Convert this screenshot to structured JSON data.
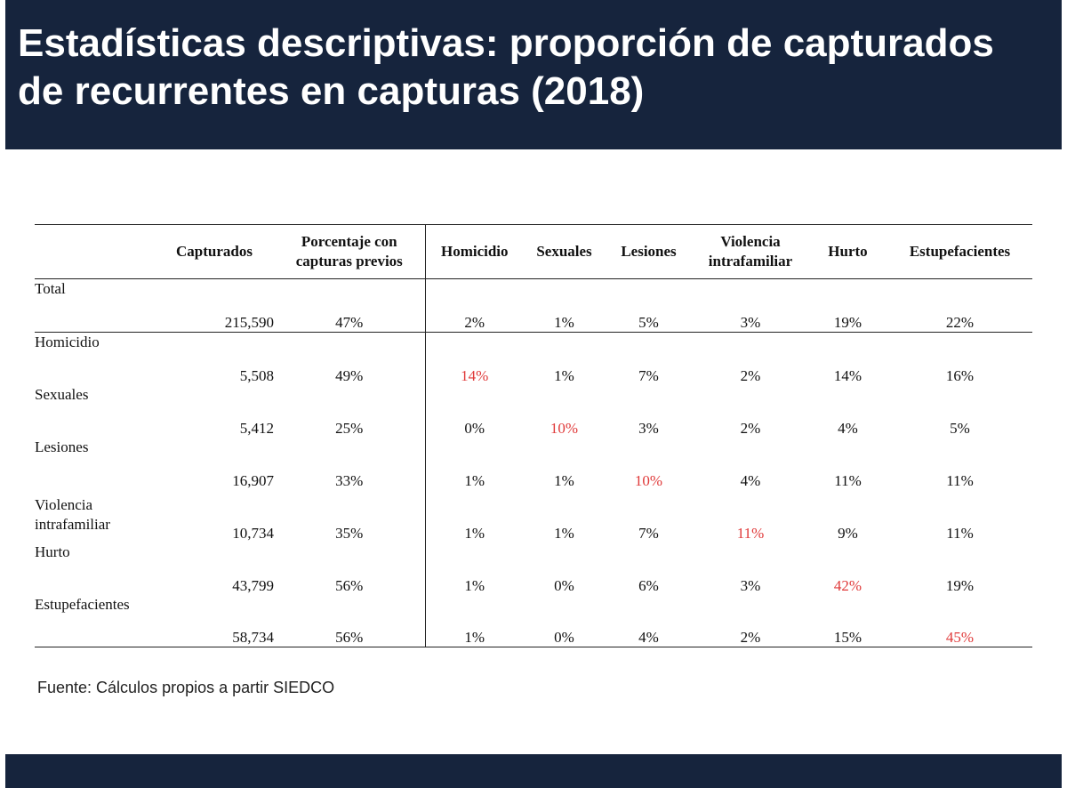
{
  "title_line1": "Estadísticas descriptivas: proporción de capturados",
  "title_line2": "de recurrentes en capturas (2018)",
  "colors": {
    "header_bg": "#16243d",
    "highlight": "#e03a3a"
  },
  "table": {
    "headers": {
      "label": "",
      "capturados": "Capturados",
      "porcentaje_1": "Porcentaje con",
      "porcentaje_2": "capturas previos",
      "homicidio": "Homicidio",
      "sexuales": "Sexuales",
      "lesiones": "Lesiones",
      "violencia_1": "Violencia",
      "violencia_2": "intrafamiliar",
      "hurto": "Hurto",
      "estupefacientes": "Estupefacientes"
    },
    "rows": [
      {
        "label": "Total",
        "capturados": "215,590",
        "porcentaje": "47%",
        "homicidio": "2%",
        "sexuales": "1%",
        "lesiones": "5%",
        "violencia": "3%",
        "hurto": "19%",
        "estupefacientes": "22%"
      },
      {
        "label": "Homicidio",
        "capturados": "5,508",
        "porcentaje": "49%",
        "homicidio": "14%",
        "sexuales": "1%",
        "lesiones": "7%",
        "violencia": "2%",
        "hurto": "14%",
        "estupefacientes": "16%"
      },
      {
        "label": "Sexuales",
        "capturados": "5,412",
        "porcentaje": "25%",
        "homicidio": "0%",
        "sexuales": "10%",
        "lesiones": "3%",
        "violencia": "2%",
        "hurto": "4%",
        "estupefacientes": "5%"
      },
      {
        "label": "Lesiones",
        "capturados": "16,907",
        "porcentaje": "33%",
        "homicidio": "1%",
        "sexuales": "1%",
        "lesiones": "10%",
        "violencia": "4%",
        "hurto": "11%",
        "estupefacientes": "11%"
      },
      {
        "label_1": "Violencia",
        "label_2": "intrafamiliar",
        "capturados": "10,734",
        "porcentaje": "35%",
        "homicidio": "1%",
        "sexuales": "1%",
        "lesiones": "7%",
        "violencia": "11%",
        "hurto": "9%",
        "estupefacientes": "11%"
      },
      {
        "label": "Hurto",
        "capturados": "43,799",
        "porcentaje": "56%",
        "homicidio": "1%",
        "sexuales": "0%",
        "lesiones": "6%",
        "violencia": "3%",
        "hurto": "42%",
        "estupefacientes": "19%"
      },
      {
        "label": "Estupefacientes",
        "capturados": "58,734",
        "porcentaje": "56%",
        "homicidio": "1%",
        "sexuales": "0%",
        "lesiones": "4%",
        "violencia": "2%",
        "hurto": "15%",
        "estupefacientes": "45%"
      }
    ]
  },
  "source": "Fuente: Cálculos propios a partir SIEDCO"
}
